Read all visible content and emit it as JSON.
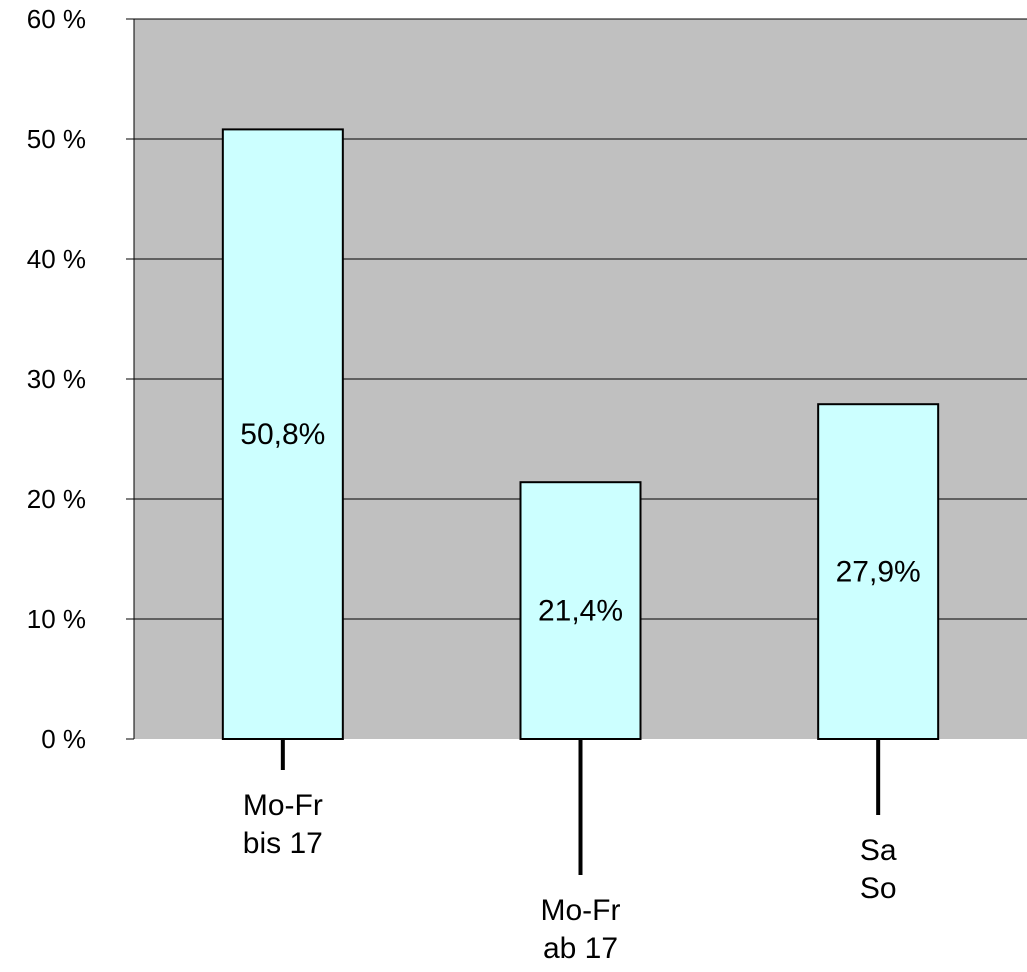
{
  "chart_data": {
    "type": "bar",
    "categories": [
      [
        "Mo-Fr",
        "bis 17"
      ],
      [
        "Mo-Fr",
        "ab 17"
      ],
      [
        "Sa",
        "So"
      ]
    ],
    "values": [
      50.8,
      21.4,
      27.9
    ],
    "data_labels": [
      "50,8%",
      "21,4%",
      "27,9%"
    ],
    "y_ticks": [
      0,
      10,
      20,
      30,
      40,
      50,
      60
    ],
    "y_tick_labels": [
      "0 %",
      "10 %",
      "20 %",
      "30 %",
      "40 %",
      "50 %",
      "60 %"
    ],
    "ylim": [
      0,
      60
    ],
    "grid": true,
    "legend": "none",
    "colors": {
      "plot_background": "#c0c0c0",
      "bar_fill": "#ccffff",
      "bar_stroke": "#000000",
      "grid": "#000000",
      "text": "#000000"
    }
  }
}
